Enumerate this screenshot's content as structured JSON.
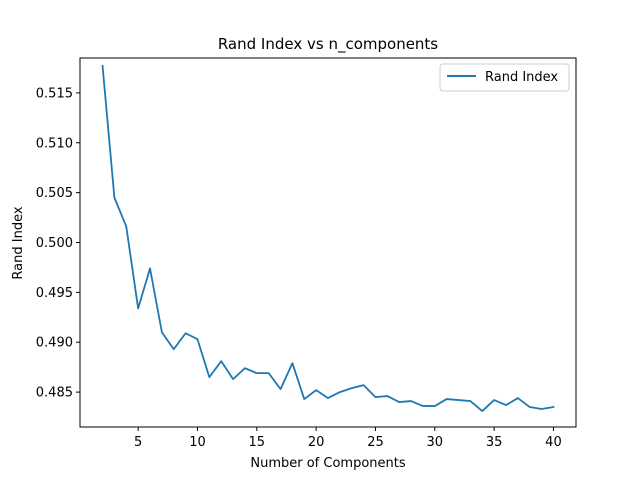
{
  "chart_data": {
    "type": "line",
    "title": "Rand Index vs n_components",
    "xlabel": "Number of Components",
    "ylabel": "Rand Index",
    "xlim": [
      0.1,
      41.9
    ],
    "ylim": [
      0.4815,
      0.5185
    ],
    "xticks": [
      5,
      10,
      15,
      20,
      25,
      30,
      35,
      40
    ],
    "xtick_labels": [
      "5",
      "10",
      "15",
      "20",
      "25",
      "30",
      "35",
      "40"
    ],
    "yticks": [
      0.485,
      0.49,
      0.495,
      0.5,
      0.505,
      0.51,
      0.515
    ],
    "ytick_labels": [
      "0.485",
      "0.490",
      "0.495",
      "0.500",
      "0.505",
      "0.510",
      "0.515"
    ],
    "grid": false,
    "legend_position": "top-right",
    "series": [
      {
        "name": "Rand Index",
        "color": "#1f77b4",
        "x": [
          2,
          3,
          4,
          5,
          6,
          7,
          8,
          9,
          10,
          11,
          12,
          13,
          14,
          15,
          16,
          17,
          18,
          19,
          20,
          21,
          22,
          23,
          24,
          25,
          26,
          27,
          28,
          29,
          30,
          31,
          32,
          33,
          34,
          35,
          36,
          37,
          38,
          39,
          40
        ],
        "y": [
          0.5177,
          0.5045,
          0.5016,
          0.4934,
          0.4974,
          0.491,
          0.4893,
          0.4909,
          0.4903,
          0.4865,
          0.4881,
          0.4863,
          0.4874,
          0.4869,
          0.4869,
          0.4853,
          0.4879,
          0.4843,
          0.4852,
          0.4844,
          0.485,
          0.4854,
          0.4857,
          0.4845,
          0.4846,
          0.484,
          0.4841,
          0.4836,
          0.4836,
          0.4843,
          0.4842,
          0.4841,
          0.4831,
          0.4842,
          0.4837,
          0.4844,
          0.4835,
          0.4833,
          0.4835
        ]
      }
    ]
  }
}
